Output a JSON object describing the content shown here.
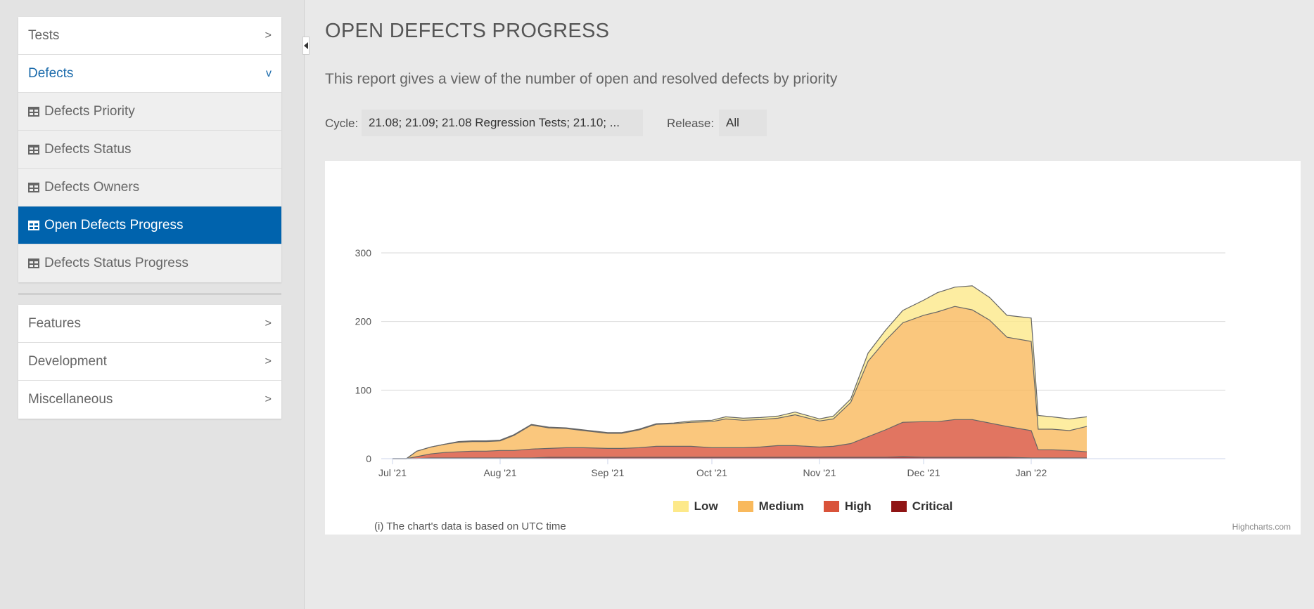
{
  "sidebar": {
    "groups": [
      {
        "items": [
          {
            "label": "Tests",
            "chevron": ">"
          },
          {
            "label": "Defects",
            "chevron": "v",
            "open": true
          }
        ]
      },
      {
        "items": [
          {
            "label": "Features",
            "chevron": ">"
          },
          {
            "label": "Development",
            "chevron": ">"
          },
          {
            "label": "Miscellaneous",
            "chevron": ">"
          }
        ]
      }
    ],
    "defects_subitems": [
      {
        "label": "Defects Priority",
        "icon": "table-icon"
      },
      {
        "label": "Defects Status",
        "icon": "table-icon"
      },
      {
        "label": "Defects Owners",
        "icon": "table-icon"
      },
      {
        "label": "Open Defects Progress",
        "icon": "table-icon",
        "active": true
      },
      {
        "label": "Defects Status Progress",
        "icon": "table-icon"
      }
    ],
    "collapse_icon": "caret-left-icon"
  },
  "main": {
    "title": "OPEN DEFECTS PROGRESS",
    "description": "This report gives a view of the number of open and resolved defects by priority",
    "filters": {
      "cycle_label": "Cycle:",
      "cycle_value": "21.08; 21.09; 21.08 Regression Tests; 21.10; ...",
      "release_label": "Release:",
      "release_value": "All"
    },
    "utc_note": "(i) The chart's data is based on UTC time",
    "credits": "Highcharts.com"
  },
  "colors": {
    "accent": "#0063ad",
    "low": "#fde98a",
    "medium": "#f9b95c",
    "high": "#d9533a",
    "critical": "#8f1414"
  },
  "chart_data": {
    "type": "area",
    "stacked": true,
    "title": "",
    "xlabel": "",
    "ylabel": "",
    "ylim": [
      0,
      300
    ],
    "yticks": [
      "0",
      "100",
      "200",
      "300"
    ],
    "xticks": [
      "Jul '21",
      "Aug '21",
      "Sep '21",
      "Oct '21",
      "Nov '21",
      "Dec '21",
      "Jan '22"
    ],
    "grid": true,
    "legend_position": "bottom",
    "x": [
      "2021-07-01",
      "2021-07-05",
      "2021-07-08",
      "2021-07-12",
      "2021-07-16",
      "2021-07-20",
      "2021-07-24",
      "2021-07-28",
      "2021-08-01",
      "2021-08-05",
      "2021-08-10",
      "2021-08-15",
      "2021-08-20",
      "2021-08-25",
      "2021-09-01",
      "2021-09-05",
      "2021-09-10",
      "2021-09-15",
      "2021-09-20",
      "2021-09-25",
      "2021-10-01",
      "2021-10-05",
      "2021-10-10",
      "2021-10-15",
      "2021-10-20",
      "2021-10-25",
      "2021-11-01",
      "2021-11-05",
      "2021-11-10",
      "2021-11-15",
      "2021-11-20",
      "2021-11-25",
      "2021-12-01",
      "2021-12-05",
      "2021-12-10",
      "2021-12-15",
      "2021-12-20",
      "2021-12-25",
      "2022-01-01",
      "2022-01-03",
      "2022-01-07",
      "2022-01-12",
      "2022-01-17"
    ],
    "series": [
      {
        "name": "Critical",
        "color": "#8f1414",
        "values": [
          0,
          0,
          0,
          1,
          1,
          1,
          1,
          1,
          1,
          1,
          1,
          2,
          2,
          2,
          2,
          2,
          2,
          2,
          2,
          2,
          2,
          2,
          2,
          2,
          2,
          2,
          2,
          2,
          2,
          2,
          2,
          3,
          2,
          2,
          2,
          2,
          2,
          2,
          1,
          1,
          1,
          1,
          1
        ]
      },
      {
        "name": "High",
        "color": "#d9533a",
        "values": [
          0,
          0,
          3,
          6,
          8,
          9,
          10,
          10,
          11,
          11,
          13,
          13,
          14,
          14,
          13,
          13,
          14,
          16,
          16,
          16,
          14,
          14,
          14,
          15,
          17,
          17,
          15,
          16,
          20,
          30,
          40,
          50,
          52,
          52,
          55,
          55,
          50,
          45,
          40,
          12,
          12,
          11,
          9
        ]
      },
      {
        "name": "Medium",
        "color": "#f9b95c",
        "values": [
          0,
          0,
          8,
          10,
          12,
          14,
          14,
          14,
          14,
          22,
          35,
          30,
          28,
          25,
          22,
          22,
          26,
          32,
          33,
          35,
          38,
          42,
          40,
          40,
          40,
          45,
          38,
          40,
          60,
          110,
          130,
          145,
          155,
          160,
          165,
          160,
          150,
          130,
          130,
          30,
          30,
          29,
          37
        ]
      },
      {
        "name": "Low",
        "color": "#fde98a",
        "values": [
          0,
          0,
          0,
          0,
          0,
          1,
          1,
          1,
          1,
          1,
          1,
          1,
          1,
          1,
          1,
          1,
          1,
          1,
          1,
          2,
          2,
          3,
          3,
          3,
          3,
          4,
          3,
          4,
          5,
          12,
          15,
          18,
          22,
          28,
          28,
          35,
          33,
          32,
          34,
          20,
          18,
          17,
          14
        ]
      }
    ]
  }
}
